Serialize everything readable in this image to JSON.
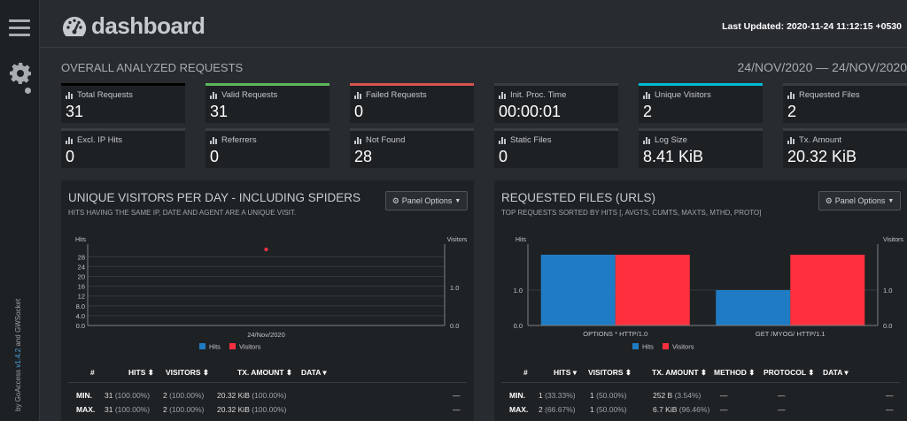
{
  "sidebar": {
    "by_prefix": "by GoAccess",
    "version": "v1.4.2",
    "by_suffix": "and GWSocket"
  },
  "header": {
    "title": "dashboard",
    "last_updated_label": "Last Updated:",
    "last_updated_value": "2020-11-24 11:12:15 +0530"
  },
  "overall": {
    "title": "OVERALL ANALYZED REQUESTS",
    "date_range": "24/NOV/2020 — 24/NOV/2020",
    "cards": [
      {
        "label": "Total Requests",
        "value": "31",
        "accent": "#000000"
      },
      {
        "label": "Valid Requests",
        "value": "31",
        "accent": "#5cb85c"
      },
      {
        "label": "Failed Requests",
        "value": "0",
        "accent": "#d9534f"
      },
      {
        "label": "Init. Proc. Time",
        "value": "00:00:01",
        "accent": "#3a3e42"
      },
      {
        "label": "Unique Visitors",
        "value": "2",
        "accent": "#00bcd4"
      },
      {
        "label": "Requested Files",
        "value": "2",
        "accent": "#3a3e42"
      },
      {
        "label": "Excl. IP Hits",
        "value": "0",
        "accent": "#3a3e42"
      },
      {
        "label": "Referrers",
        "value": "0",
        "accent": "#3a3e42"
      },
      {
        "label": "Not Found",
        "value": "28",
        "accent": "#3a3e42"
      },
      {
        "label": "Static Files",
        "value": "0",
        "accent": "#3a3e42"
      },
      {
        "label": "Log Size",
        "value": "8.41 KiB",
        "accent": "#3a3e42"
      },
      {
        "label": "Tx. Amount",
        "value": "20.32 KiB",
        "accent": "#3a3e42"
      }
    ]
  },
  "colors": {
    "hits": "#1f7cc4",
    "visitors": "#ff303e"
  },
  "visitors_panel": {
    "title": "UNIQUE VISITORS PER DAY - INCLUDING SPIDERS",
    "subtitle": "HITS HAVING THE SAME IP, DATE AND AGENT ARE A UNIQUE VISIT.",
    "options_label": "Panel Options",
    "table": {
      "headers": [
        "#",
        "HITS",
        "VISITORS",
        "TX. AMOUNT",
        "DATA"
      ],
      "rows": [
        {
          "label": "MIN.",
          "hits": "31",
          "hits_pct": "(100.00%)",
          "visitors": "2",
          "visitors_pct": "(100.00%)",
          "tx": "20.32 KiB",
          "tx_pct": "(100.00%)",
          "data": "—"
        },
        {
          "label": "MAX.",
          "hits": "31",
          "hits_pct": "(100.00%)",
          "visitors": "2",
          "visitors_pct": "(100.00%)",
          "tx": "20.32 KiB",
          "tx_pct": "(100.00%)",
          "data": "—"
        }
      ]
    }
  },
  "files_panel": {
    "title": "REQUESTED FILES (URLS)",
    "subtitle": "TOP REQUESTS SORTED BY HITS [, AVGTS, CUMTS, MAXTS, MTHD, PROTO]",
    "options_label": "Panel Options",
    "table": {
      "headers": [
        "#",
        "HITS",
        "VISITORS",
        "TX. AMOUNT",
        "METHOD",
        "PROTOCOL",
        "DATA"
      ],
      "rows": [
        {
          "label": "MIN.",
          "hits": "1",
          "hits_pct": "(33.33%)",
          "visitors": "1",
          "visitors_pct": "(50.00%)",
          "tx": "252 B",
          "tx_pct": "(3.54%)",
          "method": "—",
          "protocol": "—",
          "data": "—"
        },
        {
          "label": "MAX.",
          "hits": "2",
          "hits_pct": "(66.67%)",
          "visitors": "1",
          "visitors_pct": "(50.00%)",
          "tx": "6.7 KiB",
          "tx_pct": "(96.46%)",
          "method": "—",
          "protocol": "—",
          "data": "—"
        }
      ]
    }
  },
  "chart_data": [
    {
      "type": "line",
      "title": "UNIQUE VISITORS PER DAY - INCLUDING SPIDERS",
      "categories": [
        "24/Nov/2020"
      ],
      "ylabel": "Hits",
      "y2label": "Visitors",
      "yticks": [
        "0.0",
        "4.0",
        "8.0",
        "12",
        "16",
        "20",
        "24",
        "28"
      ],
      "y2ticks": [
        "0.0",
        "1.0"
      ],
      "ylim": [
        0,
        31
      ],
      "y2lim": [
        0,
        2
      ],
      "series": [
        {
          "name": "Hits",
          "values": [
            31
          ]
        },
        {
          "name": "Visitors",
          "values": [
            2
          ]
        }
      ],
      "legend": "bottom"
    },
    {
      "type": "bar",
      "title": "REQUESTED FILES (URLS)",
      "categories": [
        "OPTIONS * HTTP/1.0",
        "GET /MYOG/ HTTP/1.1"
      ],
      "ylabel": "Hits",
      "y2label": "Visitors",
      "yticks": [
        "0.0",
        "1.0"
      ],
      "ylim": [
        0,
        2.15
      ],
      "series": [
        {
          "name": "Hits",
          "values": [
            2,
            1
          ]
        },
        {
          "name": "Visitors",
          "values": [
            1,
            1
          ]
        }
      ],
      "legend": "bottom"
    }
  ]
}
